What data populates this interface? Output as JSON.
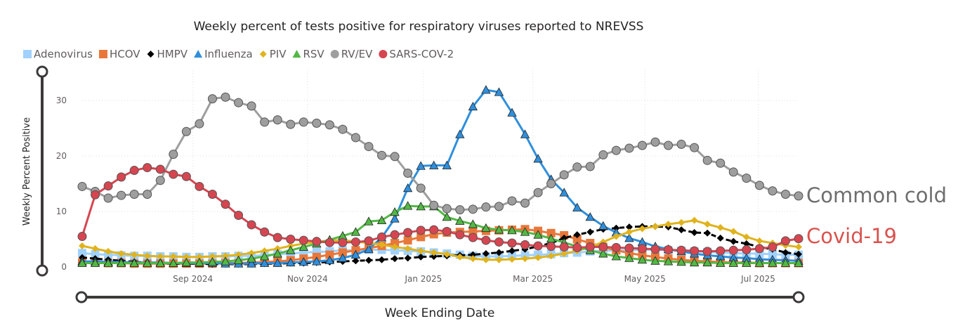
{
  "chart_data": {
    "type": "line",
    "title": "Weekly percent of tests positive for respiratory viruses reported to NREVSS",
    "xlabel": "Week Ending Date",
    "ylabel": "Weekly Percent Positive",
    "ylim": [
      0,
      34
    ],
    "yticks": [
      0,
      10,
      20,
      30
    ],
    "xticks": [
      {
        "label": "Sep 2024",
        "week": 8.5
      },
      {
        "label": "Nov 2024",
        "week": 17.3
      },
      {
        "label": "Jan 2025",
        "week": 26.2
      },
      {
        "label": "Mar 2025",
        "week": 34.6
      },
      {
        "label": "May 2025",
        "week": 43.2
      },
      {
        "label": "Jul 2025",
        "week": 51.9
      }
    ],
    "x_weeks": [
      0,
      1,
      2,
      3,
      4,
      5,
      6,
      7,
      8,
      9,
      10,
      11,
      12,
      13,
      14,
      15,
      16,
      17,
      18,
      19,
      20,
      21,
      22,
      23,
      24,
      25,
      26,
      27,
      28,
      29,
      30,
      31,
      32,
      33,
      34,
      35,
      36,
      37,
      38,
      39,
      40,
      41,
      42,
      43,
      44,
      45,
      46,
      47,
      48,
      49,
      50,
      51,
      52,
      53,
      54,
      55
    ],
    "series": [
      {
        "name": "Adenovirus",
        "color": "#a0d1ff",
        "marker": "square",
        "values": [
          2.5,
          2.3,
          2.2,
          2.1,
          2.0,
          2.0,
          1.9,
          1.9,
          1.8,
          1.8,
          1.9,
          1.9,
          2.0,
          2.0,
          2.1,
          2.3,
          2.4,
          2.6,
          2.7,
          2.8,
          3.0,
          3.0,
          3.1,
          3.1,
          3.0,
          2.9,
          2.8,
          2.6,
          2.4,
          2.2,
          2.0,
          1.9,
          1.9,
          2.0,
          2.1,
          2.2,
          2.3,
          2.5,
          2.6,
          2.8,
          2.9,
          3.0,
          3.0,
          3.1,
          3.1,
          3.0,
          2.9,
          2.8,
          2.7,
          2.6,
          2.5,
          2.4,
          2.4,
          2.3,
          2.2,
          2.2
        ]
      },
      {
        "name": "HCOV",
        "color": "#e8773a",
        "marker": "square",
        "values": [
          0.8,
          0.8,
          0.7,
          0.7,
          0.6,
          0.6,
          0.6,
          0.6,
          0.6,
          0.6,
          0.6,
          0.7,
          0.7,
          0.8,
          0.9,
          1.0,
          1.2,
          1.5,
          1.8,
          2.2,
          2.6,
          3.0,
          3.4,
          3.8,
          4.3,
          4.8,
          5.4,
          5.9,
          6.2,
          6.3,
          6.4,
          6.5,
          6.6,
          6.7,
          6.8,
          6.5,
          6.1,
          5.7,
          5.0,
          4.3,
          3.6,
          3.0,
          2.5,
          2.1,
          1.8,
          1.5,
          1.3,
          1.1,
          1.0,
          0.9,
          0.8,
          0.8,
          0.7,
          0.7,
          0.7,
          0.7
        ]
      },
      {
        "name": "HMPV",
        "color": "#000000",
        "marker": "diamond",
        "values": [
          1.7,
          1.5,
          1.3,
          1.1,
          0.9,
          0.8,
          0.7,
          0.6,
          0.6,
          0.6,
          0.5,
          0.5,
          0.5,
          0.5,
          0.6,
          0.6,
          0.7,
          0.7,
          0.8,
          0.9,
          1.0,
          1.1,
          1.2,
          1.3,
          1.5,
          1.6,
          1.8,
          1.9,
          2.0,
          2.1,
          2.2,
          2.4,
          2.6,
          2.9,
          3.2,
          3.7,
          4.3,
          5.2,
          5.8,
          6.3,
          6.8,
          7.0,
          7.2,
          7.3,
          7.3,
          7.2,
          6.7,
          6.2,
          6.1,
          5.2,
          4.6,
          4.2,
          3.6,
          3.2,
          2.6,
          2.3
        ]
      },
      {
        "name": "Influenza",
        "color": "#2f8fdc",
        "marker": "triangle",
        "values": [
          1.0,
          1.0,
          0.9,
          0.9,
          0.8,
          0.8,
          0.8,
          0.7,
          0.7,
          0.7,
          0.7,
          0.6,
          0.6,
          0.6,
          0.7,
          0.7,
          0.8,
          0.9,
          1.0,
          1.2,
          1.6,
          2.2,
          3.2,
          5.3,
          8.7,
          14.2,
          18.2,
          18.3,
          18.3,
          23.9,
          28.9,
          31.9,
          31.5,
          27.8,
          23.9,
          19.5,
          15.8,
          13.4,
          10.7,
          9.0,
          7.4,
          6.2,
          5.2,
          4.5,
          3.7,
          3.2,
          2.8,
          2.4,
          2.1,
          1.9,
          1.7,
          1.6,
          1.4,
          1.3,
          1.2,
          1.1
        ]
      },
      {
        "name": "PIV",
        "color": "#e0b31e",
        "marker": "diamond",
        "values": [
          3.8,
          3.3,
          2.8,
          2.4,
          2.2,
          2.0,
          1.9,
          1.9,
          1.8,
          1.8,
          1.9,
          2.0,
          2.2,
          2.5,
          2.9,
          3.3,
          3.8,
          4.2,
          4.5,
          4.8,
          4.8,
          4.6,
          4.3,
          4.0,
          3.6,
          3.3,
          2.9,
          2.6,
          2.3,
          1.8,
          1.5,
          1.3,
          1.3,
          1.4,
          1.5,
          1.7,
          2.0,
          2.4,
          2.9,
          3.6,
          4.5,
          5.5,
          6.3,
          6.9,
          7.3,
          7.7,
          8.0,
          8.4,
          7.7,
          7.1,
          6.4,
          5.4,
          4.7,
          4.3,
          3.9,
          3.6
        ]
      },
      {
        "name": "RSV",
        "color": "#52b845",
        "marker": "triangle",
        "values": [
          0.7,
          0.7,
          0.7,
          0.7,
          0.7,
          0.7,
          0.7,
          0.7,
          0.8,
          0.8,
          0.9,
          1.0,
          1.2,
          1.5,
          1.9,
          2.4,
          3.0,
          3.6,
          4.2,
          4.9,
          5.6,
          6.3,
          8.2,
          8.4,
          9.9,
          11.0,
          10.9,
          10.9,
          9.0,
          8.3,
          7.7,
          7.0,
          6.7,
          6.6,
          6.3,
          5.8,
          5.1,
          4.4,
          3.7,
          3.0,
          2.4,
          1.9,
          1.6,
          1.3,
          1.1,
          1.0,
          0.9,
          0.8,
          0.8,
          0.7,
          0.7,
          0.7,
          0.7,
          0.7,
          0.7,
          0.7
        ]
      },
      {
        "name": "RV/EV",
        "color": "#9e9e9e",
        "marker": "circle",
        "values": [
          14.5,
          13.6,
          12.4,
          12.9,
          13.1,
          13.1,
          15.6,
          20.3,
          24.4,
          25.8,
          30.3,
          30.6,
          29.6,
          29.0,
          26.1,
          26.5,
          25.7,
          26.1,
          25.9,
          25.6,
          24.8,
          23.3,
          21.7,
          20.1,
          19.9,
          16.9,
          14.2,
          11.1,
          10.5,
          10.3,
          10.4,
          10.8,
          10.9,
          11.9,
          11.5,
          13.4,
          15.0,
          16.6,
          18.0,
          18.1,
          20.2,
          21.0,
          21.4,
          21.9,
          22.5,
          21.9,
          22.1,
          21.5,
          19.2,
          18.7,
          17.1,
          16.0,
          14.7,
          13.7,
          13.1,
          12.8
        ]
      },
      {
        "name": "SARS-COV-2",
        "color": "#d64550",
        "marker": "circle",
        "values": [
          5.5,
          13.0,
          14.6,
          16.2,
          17.4,
          17.9,
          17.6,
          16.7,
          16.3,
          14.5,
          13.1,
          11.3,
          9.3,
          7.6,
          6.3,
          5.3,
          5.0,
          4.8,
          4.6,
          4.4,
          4.4,
          4.5,
          4.7,
          5.4,
          5.8,
          6.2,
          6.6,
          6.7,
          6.4,
          5.8,
          5.3,
          4.8,
          4.5,
          4.3,
          4.0,
          3.8,
          3.7,
          3.6,
          3.5,
          3.6,
          3.6,
          3.5,
          3.4,
          3.3,
          3.2,
          3.1,
          3.0,
          2.9,
          2.8,
          2.9,
          3.0,
          3.1,
          3.3,
          3.6,
          4.7,
          5.1
        ]
      }
    ],
    "annotations": [
      {
        "text": "Common cold",
        "color": "#6e6e6e"
      },
      {
        "text": "Covid-19",
        "color": "#d9534f"
      }
    ],
    "legend_position": "top-left"
  }
}
